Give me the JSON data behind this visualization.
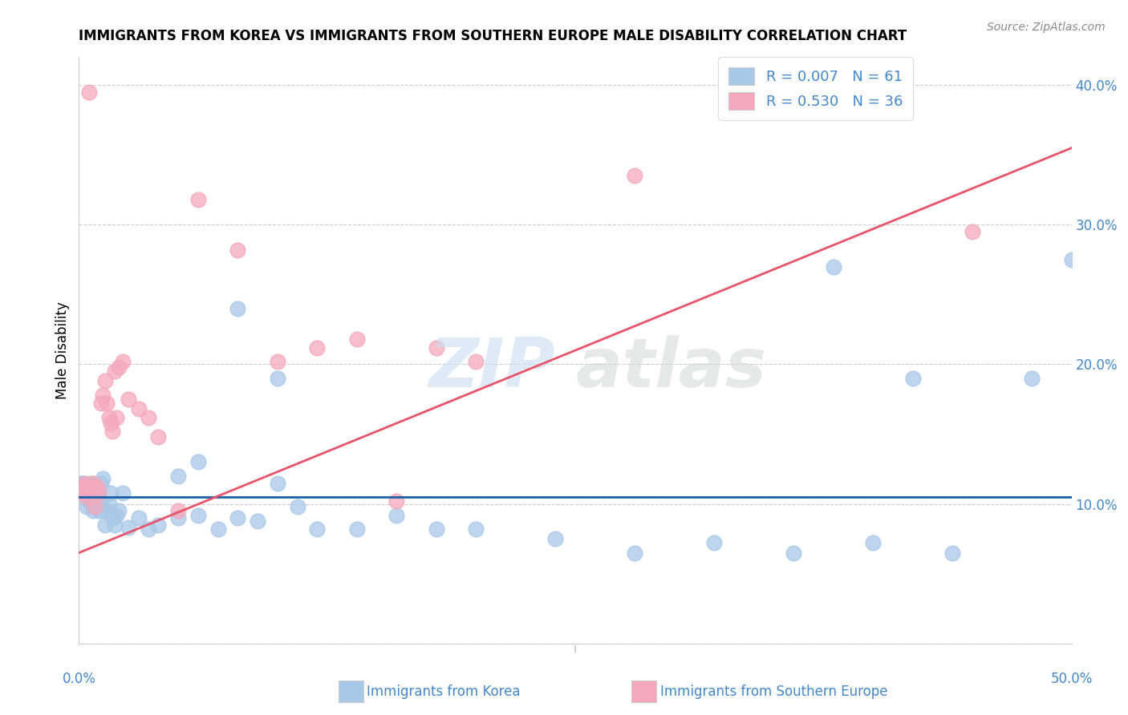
{
  "title": "IMMIGRANTS FROM KOREA VS IMMIGRANTS FROM SOUTHERN EUROPE MALE DISABILITY CORRELATION CHART",
  "source": "Source: ZipAtlas.com",
  "ylabel": "Male Disability",
  "xlabel_korea": "Immigrants from Korea",
  "xlabel_s_europe": "Immigrants from Southern Europe",
  "xlim": [
    0.0,
    0.5
  ],
  "ylim": [
    0.0,
    0.42
  ],
  "x_ticks": [
    0.0,
    0.05,
    0.1,
    0.15,
    0.2,
    0.25,
    0.3,
    0.35,
    0.4,
    0.45,
    0.5
  ],
  "y_ticks": [
    0.0,
    0.1,
    0.2,
    0.3,
    0.4
  ],
  "y_tick_labels": [
    "",
    "10.0%",
    "20.0%",
    "30.0%",
    "40.0%"
  ],
  "korea_R": 0.007,
  "korea_N": 61,
  "s_europe_R": 0.53,
  "s_europe_N": 36,
  "korea_color": "#a8c8e8",
  "s_europe_color": "#f5a8bc",
  "korea_line_color": "#1a5fa8",
  "s_europe_line_color": "#e8546a",
  "legend_text_color": "#4488cc",
  "korea_line_y0": 0.105,
  "korea_line_y1": 0.105,
  "se_line_y0": 0.065,
  "se_line_y1": 0.355,
  "korea_x": [
    0.001,
    0.002,
    0.002,
    0.003,
    0.003,
    0.004,
    0.004,
    0.005,
    0.005,
    0.006,
    0.006,
    0.007,
    0.007,
    0.008,
    0.008,
    0.009,
    0.009,
    0.01,
    0.01,
    0.011,
    0.011,
    0.012,
    0.013,
    0.014,
    0.015,
    0.016,
    0.017,
    0.018,
    0.019,
    0.02,
    0.022,
    0.025,
    0.03,
    0.035,
    0.04,
    0.05,
    0.06,
    0.07,
    0.08,
    0.09,
    0.1,
    0.11,
    0.12,
    0.14,
    0.16,
    0.18,
    0.2,
    0.24,
    0.28,
    0.32,
    0.36,
    0.4,
    0.44,
    0.48,
    0.5,
    0.38,
    0.42,
    0.1,
    0.08,
    0.06,
    0.05
  ],
  "korea_y": [
    0.115,
    0.108,
    0.115,
    0.105,
    0.112,
    0.098,
    0.108,
    0.11,
    0.102,
    0.115,
    0.108,
    0.112,
    0.095,
    0.1,
    0.108,
    0.112,
    0.1,
    0.095,
    0.108,
    0.1,
    0.115,
    0.118,
    0.085,
    0.095,
    0.1,
    0.108,
    0.09,
    0.085,
    0.092,
    0.095,
    0.108,
    0.083,
    0.09,
    0.082,
    0.085,
    0.09,
    0.092,
    0.082,
    0.09,
    0.088,
    0.115,
    0.098,
    0.082,
    0.082,
    0.092,
    0.082,
    0.082,
    0.075,
    0.065,
    0.072,
    0.065,
    0.072,
    0.065,
    0.19,
    0.275,
    0.27,
    0.19,
    0.19,
    0.24,
    0.13,
    0.12
  ],
  "s_europe_x": [
    0.001,
    0.002,
    0.003,
    0.004,
    0.005,
    0.006,
    0.007,
    0.008,
    0.009,
    0.01,
    0.011,
    0.012,
    0.013,
    0.014,
    0.015,
    0.016,
    0.017,
    0.018,
    0.019,
    0.02,
    0.022,
    0.025,
    0.03,
    0.035,
    0.04,
    0.05,
    0.06,
    0.08,
    0.1,
    0.12,
    0.14,
    0.16,
    0.18,
    0.2,
    0.45,
    0.28
  ],
  "s_europe_y": [
    0.112,
    0.108,
    0.115,
    0.105,
    0.395,
    0.112,
    0.115,
    0.098,
    0.112,
    0.108,
    0.172,
    0.178,
    0.188,
    0.172,
    0.162,
    0.158,
    0.152,
    0.195,
    0.162,
    0.198,
    0.202,
    0.175,
    0.168,
    0.162,
    0.148,
    0.095,
    0.318,
    0.282,
    0.202,
    0.212,
    0.218,
    0.102,
    0.212,
    0.202,
    0.295,
    0.335
  ]
}
